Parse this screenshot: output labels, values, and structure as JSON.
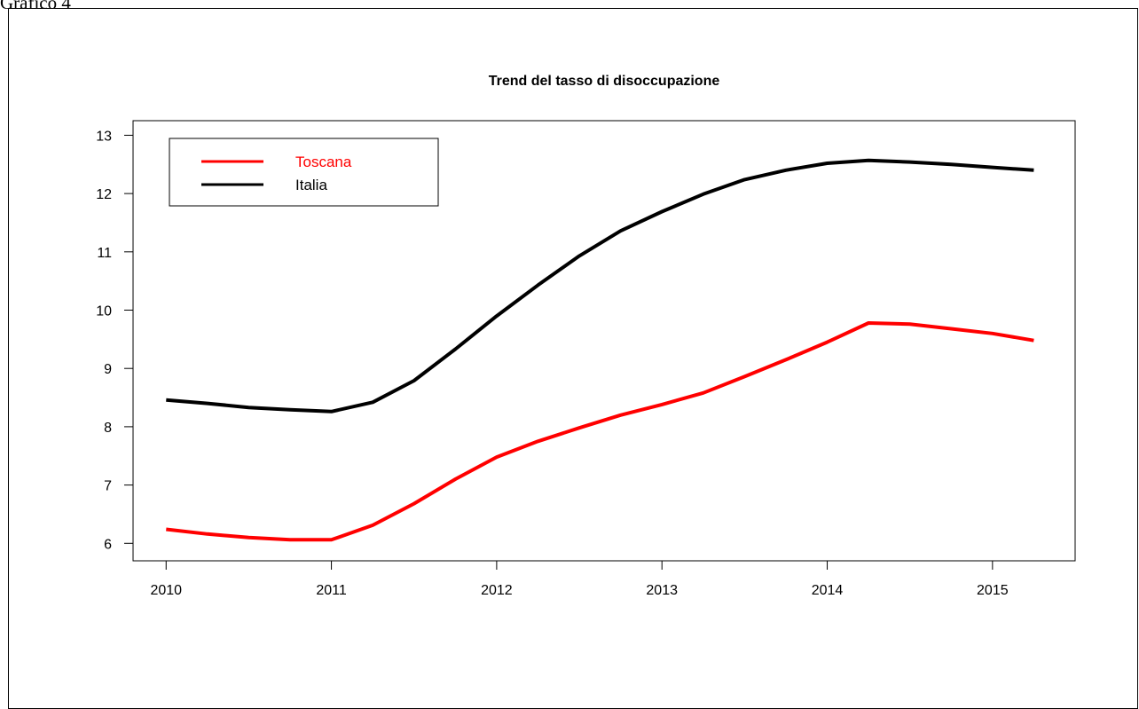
{
  "caption": "Grafico 4",
  "chart_data": {
    "type": "line",
    "title": "Trend del tasso di disoccupazione",
    "xlabel": "",
    "ylabel": "",
    "xlim": [
      2009.8,
      2015.5
    ],
    "ylim": [
      5.7,
      13.25
    ],
    "x_ticks": [
      "2010",
      "2011",
      "2012",
      "2013",
      "2014",
      "2015"
    ],
    "y_ticks": [
      "6",
      "7",
      "8",
      "9",
      "10",
      "11",
      "12",
      "13"
    ],
    "grid": false,
    "legend_position": "top-left",
    "x": [
      2010,
      2010.25,
      2010.5,
      2010.75,
      2011,
      2011.25,
      2011.5,
      2011.75,
      2012,
      2012.25,
      2012.5,
      2012.75,
      2013,
      2013.25,
      2013.5,
      2013.75,
      2014,
      2014.25,
      2014.5,
      2014.75,
      2015,
      2015.25
    ],
    "series": [
      {
        "name": "Toscana",
        "color": "#ff0000",
        "values": [
          6.24,
          6.16,
          6.1,
          6.06,
          6.06,
          6.31,
          6.68,
          7.1,
          7.48,
          7.75,
          7.98,
          8.2,
          8.38,
          8.58,
          8.86,
          9.15,
          9.45,
          9.78,
          9.76,
          9.68,
          9.6,
          9.48
        ]
      },
      {
        "name": "Italia",
        "color": "#000000",
        "values": [
          8.46,
          8.4,
          8.33,
          8.29,
          8.26,
          8.42,
          8.79,
          9.33,
          9.9,
          10.43,
          10.93,
          11.36,
          11.69,
          11.99,
          12.24,
          12.4,
          12.52,
          12.57,
          12.54,
          12.5,
          12.45,
          12.4
        ]
      }
    ]
  }
}
